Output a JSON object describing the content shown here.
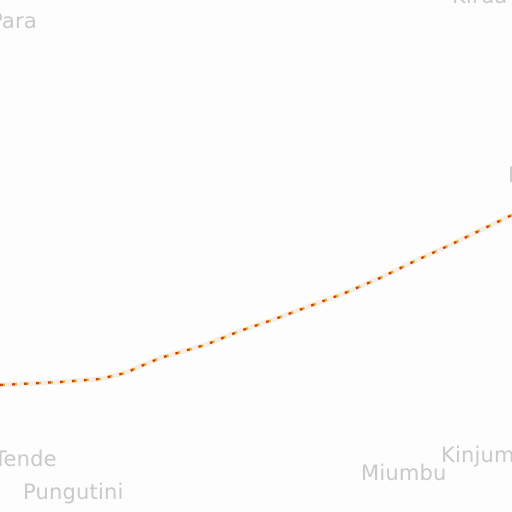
{
  "map": {
    "background": "#fdfdfd",
    "place_labels": {
      "para": "Para",
      "top_right": "Kirua",
      "right_edge": "M",
      "tende": "Tende",
      "pungutini": "Pungutini",
      "miumbu": "Miumbu",
      "kinjum": "Kinjum"
    },
    "route": {
      "casing_color": "#f4efe6",
      "dash_colors": [
        "#d93a00",
        "#f2b100"
      ]
    }
  }
}
